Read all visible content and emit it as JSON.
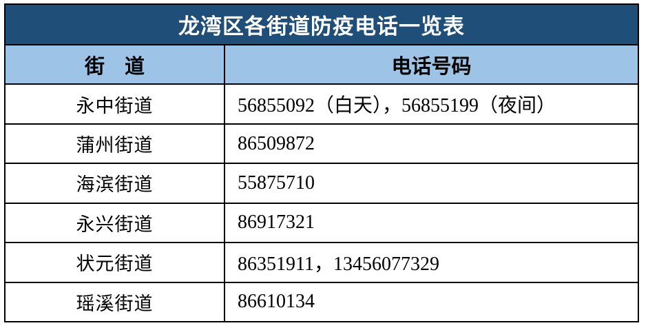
{
  "title": "龙湾区各街道防疫电话一览表",
  "columns": {
    "street": "街　道",
    "phone": "电话号码"
  },
  "rows": [
    {
      "street": "永中街道",
      "phone": "56855092（白天），56855199（夜间）"
    },
    {
      "street": "蒲州街道",
      "phone": "86509872"
    },
    {
      "street": "海滨街道",
      "phone": "55875710"
    },
    {
      "street": "永兴街道",
      "phone": "86917321"
    },
    {
      "street": "状元街道",
      "phone": "86351911，13456077329"
    },
    {
      "street": "瑶溪街道",
      "phone": "86610134"
    }
  ],
  "colors": {
    "title_background": "#1F4E79",
    "title_text": "#FFFFFF",
    "header_background": "#9DC3E6",
    "header_text": "#000000",
    "body_text": "#000000",
    "border": "#000000",
    "page_background": "#FFFFFF"
  }
}
